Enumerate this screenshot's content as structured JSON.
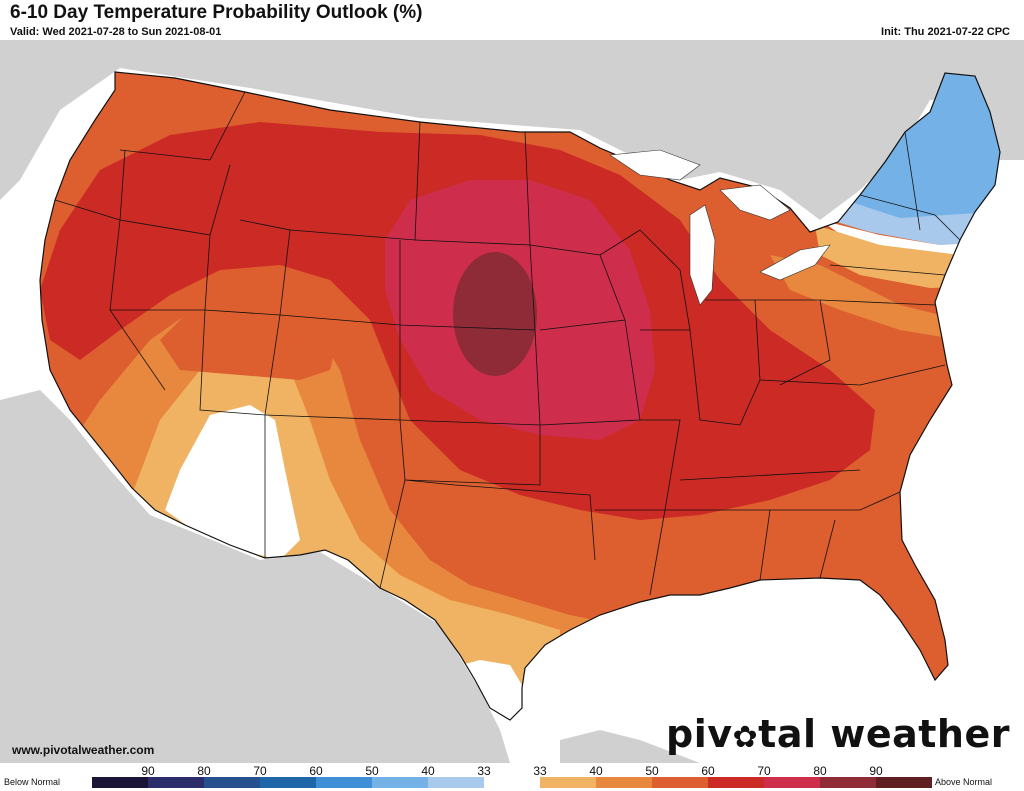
{
  "header": {
    "title": "6-10 Day Temperature Probability Outlook (%)",
    "valid": "Valid: Wed 2021-07-28 to Sun 2021-08-01",
    "init": "Init: Thu 2021-07-22 CPC"
  },
  "footer": {
    "website": "www.pivotalweather.com",
    "brand_left": "piv",
    "brand_right": "tal weather"
  },
  "legend": {
    "below_label": "Below Normal",
    "above_label": "Above Normal",
    "ticks": [
      "90",
      "80",
      "70",
      "60",
      "50",
      "40",
      "33",
      "33",
      "40",
      "50",
      "60",
      "70",
      "80",
      "90"
    ],
    "colors": [
      "#1a1536",
      "#2b2e6a",
      "#27508f",
      "#1f66a8",
      "#3f8fd6",
      "#74b1e6",
      "#a9c9ec",
      "#ffffff",
      "#f0b363",
      "#e8883f",
      "#dd5e2e",
      "#cc2a25",
      "#cf2d4c",
      "#8e2b36",
      "#5e1e22"
    ]
  },
  "map_categories": {
    "above": [
      "33-40",
      "40-50",
      "50-60",
      "60-70",
      "70-80",
      "80-90"
    ],
    "below": [
      "33-40",
      "40-50"
    ],
    "near_normal": "33"
  }
}
